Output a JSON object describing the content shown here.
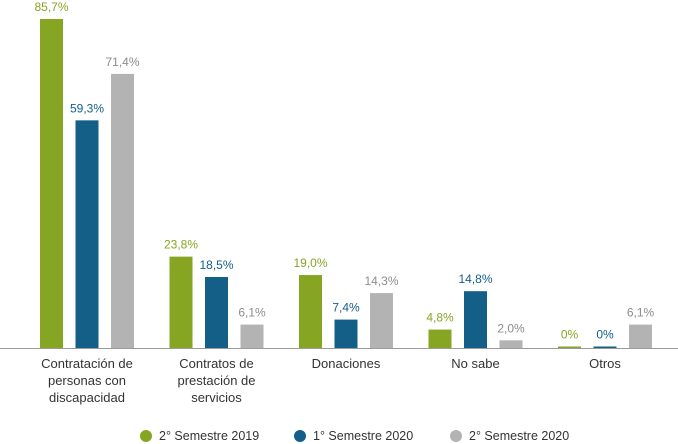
{
  "chart_data": {
    "type": "bar",
    "categories": [
      [
        "Contratación de",
        "personas con",
        "discapacidad"
      ],
      [
        "Contratos de",
        "prestación de",
        "servicios"
      ],
      [
        "Donaciones"
      ],
      [
        "No sabe"
      ],
      [
        "Otros"
      ]
    ],
    "series": [
      {
        "name": "2° Semestre 2019",
        "color": "#86a523",
        "values": [
          85.7,
          23.8,
          19.0,
          4.8,
          0
        ],
        "labels": [
          "85,7%",
          "23,8%",
          "19,0%",
          "4,8%",
          "0%"
        ],
        "label_color": "#86a523"
      },
      {
        "name": "1° Semestre 2020",
        "color": "#135f88",
        "values": [
          59.3,
          18.5,
          7.4,
          14.8,
          0
        ],
        "labels": [
          "59,3%",
          "18,5%",
          "7,4%",
          "14,8%",
          "0%"
        ],
        "label_color": "#135f88"
      },
      {
        "name": "2° Semestre 2020",
        "color": "#b3b3b3",
        "values": [
          71.4,
          6.1,
          14.3,
          2.0,
          6.1
        ],
        "labels": [
          "71,4%",
          "6,1%",
          "14,3%",
          "2,0%",
          "6,1%"
        ],
        "label_color": "#8c8c8c"
      }
    ],
    "ylim": [
      0,
      100
    ],
    "grid": false,
    "legend_position": "bottom"
  }
}
